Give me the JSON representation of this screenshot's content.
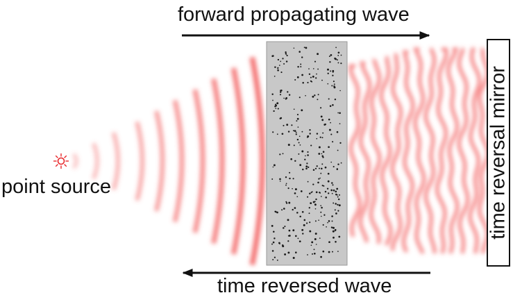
{
  "labels": {
    "forward": "forward propagating wave",
    "reversed": "time reversed wave",
    "source": "point source",
    "mirror": "time reversal mirror"
  },
  "colors": {
    "wave": "#f25a5a",
    "medium": "#c8c8c8",
    "scatterer": "#1a1a1a",
    "source": "#e8262a",
    "arrow": "#111111"
  },
  "icons": {
    "source": "sun-burst-icon"
  }
}
